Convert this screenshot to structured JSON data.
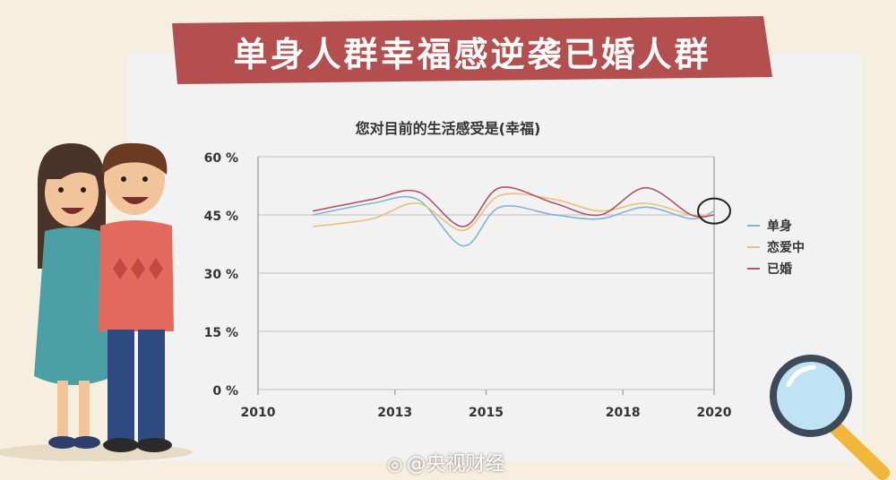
{
  "banner": {
    "title": "单身人群幸福感逆袭已婚人群"
  },
  "chart_data": {
    "type": "line",
    "title": "您对目前的生活感受是(幸福)",
    "x_ticks": [
      "2010",
      "2013",
      "2015",
      "2018",
      "2020"
    ],
    "y_ticks": [
      "0 %",
      "15 %",
      "30 %",
      "45 %",
      "60 %"
    ],
    "xlim": [
      2010,
      2020
    ],
    "ylim": [
      0,
      60
    ],
    "grid": true,
    "legend_position": "right",
    "x": [
      2011.2,
      2012.5,
      2013.5,
      2014.5,
      2015.3,
      2016.5,
      2017.5,
      2018.5,
      2019.5,
      2020
    ],
    "series": [
      {
        "name": "单身",
        "color": "#7fb6d6",
        "values": [
          45,
          48,
          49,
          37,
          47,
          45,
          44,
          47,
          44,
          46
        ]
      },
      {
        "name": "恋爱中",
        "color": "#e9c27a",
        "values": [
          42,
          44,
          48,
          41,
          50,
          49,
          46,
          48,
          45,
          45
        ]
      },
      {
        "name": "已婚",
        "color": "#b5536a",
        "values": [
          46,
          49,
          51,
          42,
          52,
          48,
          45,
          52,
          45,
          45
        ]
      }
    ],
    "highlight_color": "#222222"
  },
  "colors": {
    "banner": "#b44f4f",
    "panel": "#f2f2f2",
    "background": "#f6efe0"
  },
  "watermark": {
    "logo": "weibo-icon",
    "text": "@央视财经"
  }
}
